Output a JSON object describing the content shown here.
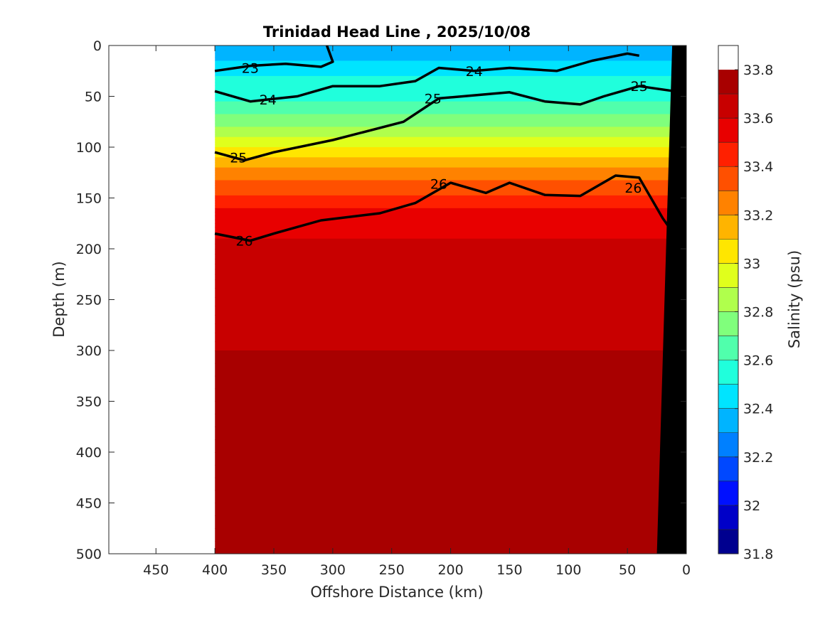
{
  "chart_data": {
    "type": "contour",
    "title": "Trinidad Head Line , 2025/10/08",
    "xlabel": "Offshore Distance (km)",
    "ylabel": "Depth (m)",
    "colorbar_label": "Salinity (psu)",
    "xlim": [
      490,
      0
    ],
    "ylim": [
      0,
      500
    ],
    "x_ticks": [
      450,
      400,
      350,
      300,
      250,
      200,
      150,
      100,
      50,
      0
    ],
    "x_tick_labels": [
      "450",
      "400",
      "350",
      "300",
      "250",
      "200",
      "150",
      "100",
      "50",
      "0"
    ],
    "y_ticks": [
      0,
      50,
      100,
      150,
      200,
      250,
      300,
      350,
      400,
      450,
      500
    ],
    "y_tick_labels": [
      "0",
      "50",
      "100",
      "150",
      "200",
      "250",
      "300",
      "350",
      "400",
      "450",
      "500"
    ],
    "data_extent_km": [
      400,
      12
    ],
    "salinity_levels": [
      31.8,
      31.9,
      32.0,
      32.1,
      32.2,
      32.3,
      32.4,
      32.5,
      32.6,
      32.7,
      32.8,
      32.9,
      33.0,
      33.1,
      33.2,
      33.3,
      33.4,
      33.5,
      33.6,
      33.7,
      33.8,
      33.9
    ],
    "colorbar_ticks": [
      31.8,
      32,
      32.2,
      32.4,
      32.6,
      32.8,
      33,
      33.2,
      33.4,
      33.6,
      33.8
    ],
    "colorbar_tick_labels": [
      "31.8",
      "32",
      "32.2",
      "32.4",
      "32.6",
      "32.8",
      "33",
      "33.2",
      "33.4",
      "33.6",
      "33.8"
    ],
    "colormap": [
      "#00008f",
      "#0000c8",
      "#0010ff",
      "#0048ff",
      "#0080ff",
      "#00b4ff",
      "#00e4ff",
      "#20ffdc",
      "#50ffac",
      "#80ff7c",
      "#b0ff4c",
      "#e0ff1c",
      "#ffe600",
      "#ffb400",
      "#ff8200",
      "#ff5000",
      "#ff2000",
      "#e80000",
      "#c80000",
      "#a80000"
    ],
    "salinity_profile": {
      "depths": [
        0,
        30,
        55,
        80,
        100,
        120,
        140,
        160,
        190,
        230,
        300,
        400,
        500
      ],
      "values": [
        32.3,
        32.5,
        32.6,
        32.8,
        33.0,
        33.2,
        33.35,
        33.5,
        33.6,
        33.65,
        33.7,
        33.75,
        33.8
      ]
    },
    "density_contours": [
      {
        "label": "23",
        "points": [
          [
            400,
            25
          ],
          [
            370,
            20
          ],
          [
            340,
            18
          ],
          [
            310,
            21
          ],
          [
            300,
            16
          ],
          [
            305,
            0
          ]
        ]
      },
      {
        "label": "24",
        "points": [
          [
            400,
            45
          ],
          [
            370,
            55
          ],
          [
            330,
            50
          ],
          [
            300,
            40
          ],
          [
            260,
            40
          ],
          [
            230,
            35
          ],
          [
            210,
            22
          ],
          [
            180,
            25
          ],
          [
            150,
            22
          ],
          [
            110,
            25
          ],
          [
            80,
            15
          ],
          [
            50,
            8
          ],
          [
            40,
            10
          ]
        ]
      },
      {
        "label": "25",
        "points": [
          [
            400,
            105
          ],
          [
            375,
            113
          ],
          [
            350,
            105
          ],
          [
            300,
            93
          ],
          [
            240,
            75
          ],
          [
            210,
            52
          ],
          [
            150,
            46
          ],
          [
            120,
            55
          ],
          [
            90,
            58
          ],
          [
            70,
            50
          ],
          [
            40,
            40
          ],
          [
            10,
            45
          ]
        ]
      },
      {
        "label": "26",
        "points": [
          [
            400,
            185
          ],
          [
            370,
            192
          ],
          [
            350,
            185
          ],
          [
            310,
            172
          ],
          [
            260,
            165
          ],
          [
            230,
            155
          ],
          [
            200,
            135
          ],
          [
            170,
            145
          ],
          [
            150,
            135
          ],
          [
            120,
            147
          ],
          [
            90,
            148
          ],
          [
            60,
            128
          ],
          [
            40,
            130
          ],
          [
            20,
            170
          ],
          [
            12,
            183
          ]
        ]
      }
    ],
    "contour_label_positions": [
      {
        "text": "23",
        "x": 370,
        "y": 22
      },
      {
        "text": "24",
        "x": 180,
        "y": 25
      },
      {
        "text": "24",
        "x": 355,
        "y": 53
      },
      {
        "text": "25",
        "x": 215,
        "y": 52
      },
      {
        "text": "25",
        "x": 40,
        "y": 40
      },
      {
        "text": "25",
        "x": 380,
        "y": 110
      },
      {
        "text": "26",
        "x": 210,
        "y": 136
      },
      {
        "text": "26",
        "x": 45,
        "y": 140
      },
      {
        "text": "26",
        "x": 375,
        "y": 192
      }
    ],
    "bathymetry": [
      [
        12,
        0
      ],
      [
        0,
        0
      ],
      [
        0,
        500
      ],
      [
        25,
        500
      ],
      [
        12,
        0
      ]
    ],
    "grid": false,
    "legend": "colorbar-right"
  }
}
